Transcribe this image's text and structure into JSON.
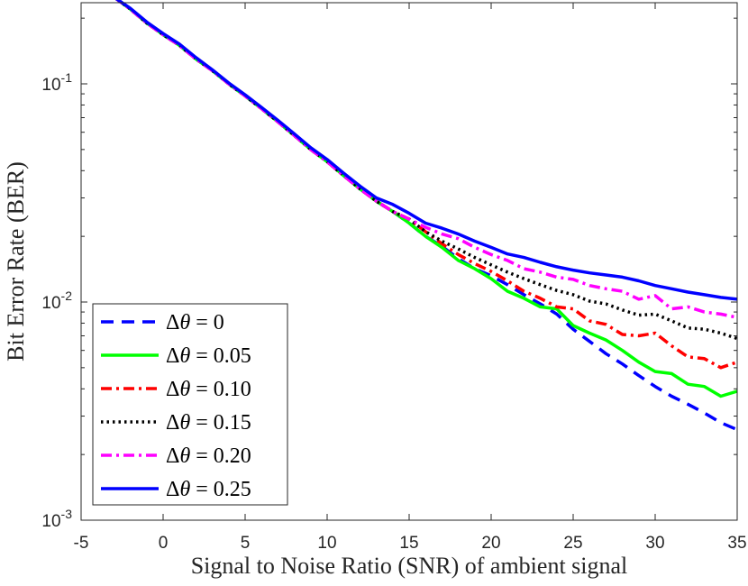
{
  "chart_data": {
    "type": "line",
    "title": "",
    "xlabel": "Signal to Noise Ratio (SNR) of ambient signal",
    "ylabel": "Bit Error Rate (BER)",
    "xlim": [
      -5,
      35
    ],
    "ylim": [
      0.001,
      0.25
    ],
    "yscale": "log",
    "grid": false,
    "legend_position": "bottom-left",
    "xticks": [
      -5,
      0,
      5,
      10,
      15,
      20,
      25,
      30,
      35
    ],
    "xtick_labels": [
      "-5",
      "0",
      "5",
      "10",
      "15",
      "20",
      "25",
      "30",
      "35"
    ],
    "yticks": [
      0.001,
      0.01,
      0.1
    ],
    "ytick_labels": [
      {
        "base": "10",
        "exp": "-3"
      },
      {
        "base": "10",
        "exp": "-2"
      },
      {
        "base": "10",
        "exp": "-1"
      }
    ],
    "x": [
      -3,
      -2,
      -1,
      0,
      1,
      2,
      3,
      4,
      5,
      6,
      7,
      8,
      9,
      10,
      11,
      12,
      13,
      14,
      15,
      16,
      17,
      18,
      19,
      20,
      21,
      22,
      23,
      24,
      25,
      26,
      27,
      28,
      29,
      30,
      31,
      32,
      33,
      34,
      35
    ],
    "series": [
      {
        "name": "Δθ = 0",
        "legend_text": "= 0",
        "color": "#0000ff",
        "style": "dashed",
        "values": [
          0.25,
          0.22,
          0.19,
          0.168,
          0.15,
          0.13,
          0.115,
          0.1,
          0.088,
          0.077,
          0.067,
          0.058,
          0.05,
          0.044,
          0.038,
          0.033,
          0.029,
          0.026,
          0.023,
          0.02,
          0.018,
          0.0158,
          0.0142,
          0.0132,
          0.012,
          0.0108,
          0.0098,
          0.0088,
          0.0075,
          0.0066,
          0.0058,
          0.0052,
          0.0046,
          0.0041,
          0.0037,
          0.0034,
          0.0031,
          0.0028,
          0.0026
        ]
      },
      {
        "name": "Δθ = 0.05",
        "legend_text": "= 0.05",
        "color": "#00ff00",
        "style": "solid",
        "values": [
          0.25,
          0.22,
          0.19,
          0.168,
          0.15,
          0.13,
          0.115,
          0.1,
          0.088,
          0.077,
          0.067,
          0.058,
          0.05,
          0.044,
          0.038,
          0.033,
          0.029,
          0.026,
          0.023,
          0.02,
          0.0178,
          0.0155,
          0.0142,
          0.0128,
          0.0112,
          0.0104,
          0.0095,
          0.0093,
          0.0078,
          0.0072,
          0.0067,
          0.006,
          0.0053,
          0.0048,
          0.0047,
          0.0042,
          0.0041,
          0.0037,
          0.0039
        ]
      },
      {
        "name": "Δθ = 0.10",
        "legend_text": "= 0.10",
        "color": "#ff0000",
        "style": "dashdot",
        "values": [
          0.25,
          0.22,
          0.19,
          0.168,
          0.15,
          0.13,
          0.115,
          0.1,
          0.088,
          0.077,
          0.067,
          0.058,
          0.05,
          0.044,
          0.038,
          0.033,
          0.029,
          0.026,
          0.024,
          0.021,
          0.0185,
          0.0165,
          0.015,
          0.0138,
          0.0125,
          0.0112,
          0.0104,
          0.0095,
          0.0093,
          0.0082,
          0.0079,
          0.0071,
          0.007,
          0.0072,
          0.0063,
          0.0056,
          0.0055,
          0.005,
          0.0053
        ]
      },
      {
        "name": "Δθ = 0.15",
        "legend_text": "= 0.15",
        "color": "#000000",
        "style": "dotted",
        "values": [
          0.25,
          0.22,
          0.19,
          0.168,
          0.15,
          0.13,
          0.115,
          0.1,
          0.088,
          0.077,
          0.067,
          0.058,
          0.05,
          0.044,
          0.038,
          0.033,
          0.029,
          0.026,
          0.024,
          0.021,
          0.019,
          0.0175,
          0.016,
          0.0148,
          0.0137,
          0.0128,
          0.012,
          0.0113,
          0.0108,
          0.0101,
          0.0098,
          0.0092,
          0.0087,
          0.0088,
          0.0082,
          0.0076,
          0.0075,
          0.0072,
          0.0068
        ]
      },
      {
        "name": "Δθ = 0.20",
        "legend_text": "= 0.20",
        "color": "#ff00ff",
        "style": "dashdot",
        "values": [
          0.25,
          0.22,
          0.19,
          0.168,
          0.15,
          0.13,
          0.115,
          0.1,
          0.088,
          0.077,
          0.067,
          0.058,
          0.05,
          0.044,
          0.038,
          0.033,
          0.029,
          0.026,
          0.024,
          0.022,
          0.0205,
          0.0195,
          0.0178,
          0.0165,
          0.0155,
          0.0142,
          0.0137,
          0.013,
          0.0127,
          0.0119,
          0.0115,
          0.0112,
          0.0103,
          0.0107,
          0.0093,
          0.0095,
          0.009,
          0.0088,
          0.0085
        ]
      },
      {
        "name": "Δθ = 0.25",
        "legend_text": "= 0.25",
        "color": "#0000ff",
        "style": "solid",
        "values": [
          0.25,
          0.222,
          0.192,
          0.17,
          0.152,
          0.132,
          0.116,
          0.101,
          0.089,
          0.078,
          0.068,
          0.059,
          0.051,
          0.045,
          0.039,
          0.034,
          0.03,
          0.028,
          0.0255,
          0.023,
          0.0218,
          0.0205,
          0.019,
          0.0178,
          0.0166,
          0.016,
          0.0152,
          0.0145,
          0.014,
          0.0136,
          0.0133,
          0.013,
          0.0125,
          0.0119,
          0.0115,
          0.0111,
          0.0108,
          0.0105,
          0.0103
        ]
      }
    ]
  }
}
